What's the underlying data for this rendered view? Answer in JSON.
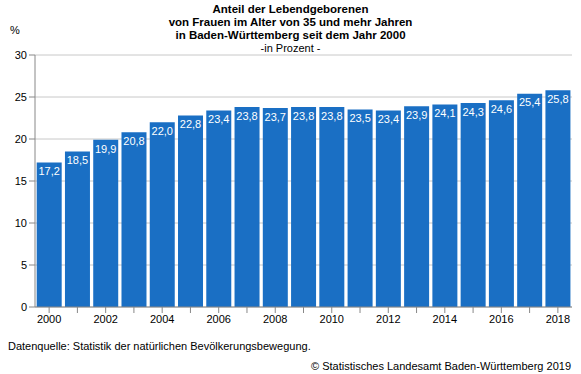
{
  "chart_data": {
    "type": "bar",
    "title": "Anteil der Lebendgeborenen\nvon Frauen im Alter von 35 und mehr Jahren\nin Baden-Württemberg seit dem Jahr 2000",
    "subtitle": "-in Prozent -",
    "y_label": "%",
    "annotations": [
      "Datenquelle: Statistik der natürlichen Bevölkerungsbewegung.",
      "© Statistisches Landesamt Baden-Württemberg 2019"
    ],
    "categories": [
      "2000",
      null,
      "2002",
      null,
      "2004",
      null,
      "2006",
      null,
      "2008",
      null,
      "2010",
      null,
      "2012",
      null,
      "2014",
      null,
      "2016",
      null,
      "2018"
    ],
    "values": [
      17.2,
      18.5,
      19.9,
      20.8,
      22.0,
      22.8,
      23.4,
      23.8,
      23.7,
      23.8,
      23.8,
      23.5,
      23.4,
      23.9,
      24.1,
      24.3,
      24.6,
      25.4,
      25.8
    ],
    "value_labels": [
      "17,2",
      "18,5",
      "19,9",
      "20,8",
      "22,0",
      "22,8",
      "23,4",
      "23,8",
      "23,7",
      "23,8",
      "23,8",
      "23,5",
      "23,4",
      "23,9",
      "24,1",
      "24,3",
      "24,6",
      "25,4",
      "25,8"
    ],
    "color": "#1a6fc4",
    "ylim": [
      0,
      30
    ],
    "yticks": [
      0,
      5,
      10,
      15,
      20,
      25,
      30
    ],
    "grid": true,
    "data_labels": true
  }
}
